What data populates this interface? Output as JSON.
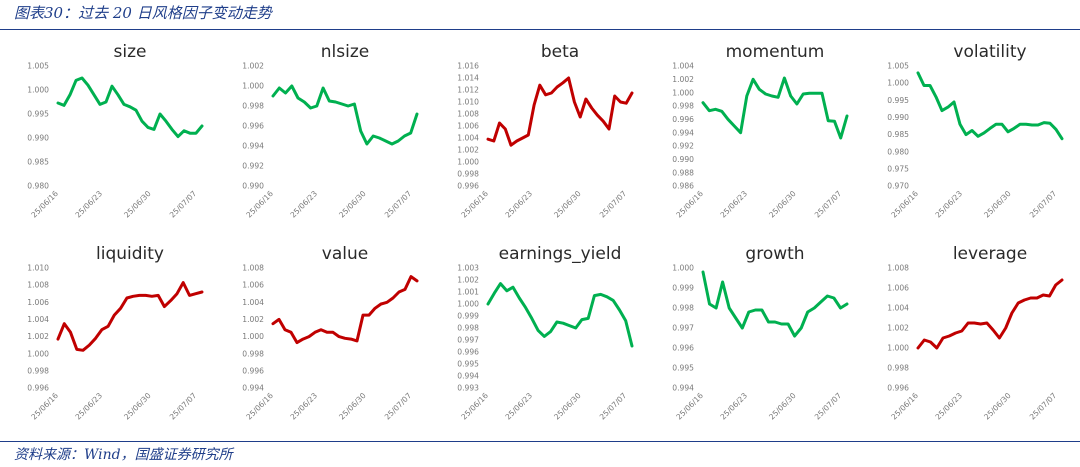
{
  "header": {
    "title": "图表30：过去 20 日风格因子变动走势"
  },
  "footer": {
    "source": "资料来源：Wind，国盛证券研究所"
  },
  "colors": {
    "up": "#c00000",
    "down": "#00b050",
    "accent": "#1f3e8a"
  },
  "xtick_labels": [
    "25/06/16",
    "25/06/23",
    "25/06/30",
    "25/07/07"
  ],
  "chart_data": [
    {
      "type": "line",
      "title": "size",
      "color": "#00b050",
      "yticks": [
        "1.005",
        "1.000",
        "0.995",
        "0.990",
        "0.985",
        "0.980"
      ],
      "ylim": [
        0.98,
        1.005
      ],
      "values": [
        0.9973,
        0.9968,
        0.999,
        1.002,
        1.0025,
        1.001,
        0.999,
        0.997,
        0.9975,
        1.0008,
        0.999,
        0.997,
        0.9965,
        0.9958,
        0.9935,
        0.9922,
        0.9918,
        0.995,
        0.9935,
        0.9918,
        0.9903,
        0.9915,
        0.991,
        0.991,
        0.9925
      ]
    },
    {
      "type": "line",
      "title": "nlsize",
      "color": "#00b050",
      "yticks": [
        "1.002",
        "1.000",
        "0.998",
        "0.996",
        "0.994",
        "0.992",
        "0.990"
      ],
      "ylim": [
        0.99,
        1.002
      ],
      "values": [
        0.999,
        0.9998,
        0.9993,
        1.0,
        0.9988,
        0.9984,
        0.9978,
        0.998,
        0.9998,
        0.9985,
        0.9984,
        0.9982,
        0.998,
        0.9982,
        0.9955,
        0.9942,
        0.995,
        0.9948,
        0.9945,
        0.9942,
        0.9945,
        0.995,
        0.9953,
        0.9972
      ]
    },
    {
      "type": "line",
      "title": "beta",
      "color": "#c00000",
      "yticks": [
        "1.016",
        "1.014",
        "1.012",
        "1.010",
        "1.008",
        "1.006",
        "1.004",
        "1.002",
        "1.000",
        "0.998",
        "0.996"
      ],
      "ylim": [
        0.996,
        1.016
      ],
      "values": [
        1.0038,
        1.0035,
        1.0065,
        1.0055,
        1.0028,
        1.0035,
        1.004,
        1.0045,
        1.0095,
        1.0128,
        1.0112,
        1.0115,
        1.0125,
        1.0132,
        1.014,
        1.01,
        1.0075,
        1.0105,
        1.009,
        1.0078,
        1.0068,
        1.0055,
        1.011,
        1.01,
        1.0098,
        1.0115
      ]
    },
    {
      "type": "line",
      "title": "momentum",
      "color": "#00b050",
      "yticks": [
        "1.004",
        "1.002",
        "1.000",
        "0.998",
        "0.996",
        "0.994",
        "0.992",
        "0.990",
        "0.988",
        "0.986"
      ],
      "ylim": [
        0.986,
        1.004
      ],
      "values": [
        0.9985,
        0.9973,
        0.9975,
        0.9972,
        0.996,
        0.995,
        0.994,
        0.9995,
        1.002,
        1.0005,
        0.9998,
        0.9995,
        0.9993,
        1.0022,
        0.9995,
        0.9983,
        0.9998,
        0.9999,
        0.9999,
        0.9999,
        0.9958,
        0.9957,
        0.9932,
        0.9965
      ]
    },
    {
      "type": "line",
      "title": "volatility",
      "color": "#00b050",
      "yticks": [
        "1.005",
        "1.000",
        "0.995",
        "0.990",
        "0.985",
        "0.980",
        "0.975",
        "0.970"
      ],
      "ylim": [
        0.97,
        1.005
      ],
      "values": [
        1.003,
        0.9993,
        0.9993,
        0.996,
        0.992,
        0.993,
        0.9945,
        0.988,
        0.985,
        0.9862,
        0.9845,
        0.9855,
        0.9868,
        0.988,
        0.988,
        0.9858,
        0.9868,
        0.988,
        0.988,
        0.9878,
        0.9878,
        0.9885,
        0.9883,
        0.9865,
        0.9838
      ]
    },
    {
      "type": "line",
      "title": "liquidity",
      "color": "#c00000",
      "yticks": [
        "1.010",
        "1.008",
        "1.006",
        "1.004",
        "1.002",
        "1.000",
        "0.998",
        "0.996"
      ],
      "ylim": [
        0.996,
        1.01
      ],
      "values": [
        1.0017,
        1.0035,
        1.0025,
        1.0005,
        1.0004,
        1.001,
        1.0018,
        1.0028,
        1.0032,
        1.0045,
        1.0053,
        1.0065,
        1.0067,
        1.0068,
        1.0068,
        1.0067,
        1.0068,
        1.0055,
        1.0062,
        1.007,
        1.0083,
        1.0068,
        1.007,
        1.0072
      ]
    },
    {
      "type": "line",
      "title": "value",
      "color": "#c00000",
      "yticks": [
        "1.008",
        "1.006",
        "1.004",
        "1.002",
        "1.000",
        "0.998",
        "0.996",
        "0.994"
      ],
      "ylim": [
        0.994,
        1.008
      ],
      "values": [
        1.0015,
        1.002,
        1.0008,
        1.0005,
        0.9993,
        0.9997,
        1.0,
        1.0005,
        1.0008,
        1.0005,
        1.0005,
        1.0,
        0.9998,
        0.9997,
        0.9995,
        1.0025,
        1.0025,
        1.0033,
        1.0038,
        1.004,
        1.0045,
        1.0052,
        1.0055,
        1.007,
        1.0065
      ]
    },
    {
      "type": "line",
      "title": "earnings_yield",
      "color": "#00b050",
      "yticks": [
        "1.003",
        "1.002",
        "1.001",
        "1.000",
        "0.999",
        "0.998",
        "0.997",
        "0.996",
        "0.995",
        "0.994",
        "0.993"
      ],
      "ylim": [
        0.993,
        1.003
      ],
      "values": [
        1.0,
        1.0009,
        1.0017,
        1.0011,
        1.0014,
        1.0005,
        0.9997,
        0.9988,
        0.9978,
        0.9973,
        0.9977,
        0.9985,
        0.9984,
        0.9982,
        0.998,
        0.9987,
        0.9988,
        1.0007,
        1.0008,
        1.0006,
        1.0003,
        0.9995,
        0.9986,
        0.9965
      ]
    },
    {
      "type": "line",
      "title": "growth",
      "color": "#00b050",
      "yticks": [
        "1.000",
        "0.999",
        "0.998",
        "0.997",
        "0.996",
        "0.995",
        "0.994"
      ],
      "ylim": [
        0.994,
        1.0
      ],
      "values": [
        0.9998,
        0.9982,
        0.998,
        0.9993,
        0.998,
        0.9975,
        0.997,
        0.9978,
        0.9979,
        0.9979,
        0.9973,
        0.9973,
        0.9972,
        0.9972,
        0.9966,
        0.997,
        0.9978,
        0.998,
        0.9983,
        0.9986,
        0.9985,
        0.998,
        0.9982
      ]
    },
    {
      "type": "line",
      "title": "leverage",
      "color": "#c00000",
      "yticks": [
        "1.008",
        "1.006",
        "1.004",
        "1.002",
        "1.000",
        "0.998",
        "0.996"
      ],
      "ylim": [
        0.996,
        1.008
      ],
      "values": [
        1.0,
        1.0008,
        1.0006,
        1.0,
        1.001,
        1.0012,
        1.0015,
        1.0017,
        1.0025,
        1.0025,
        1.0024,
        1.0025,
        1.0018,
        1.001,
        1.002,
        1.0035,
        1.0045,
        1.0048,
        1.005,
        1.005,
        1.0053,
        1.0052,
        1.0063,
        1.0068
      ]
    }
  ]
}
